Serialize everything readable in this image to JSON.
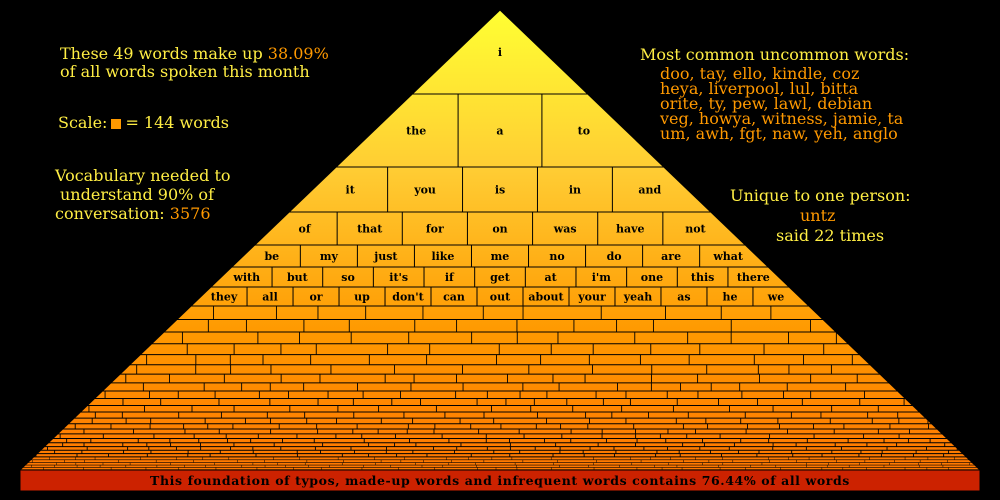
{
  "summary": {
    "line1_prefix": "These 49 words make up",
    "percent": "38.09%",
    "line2": "of all words spoken this month"
  },
  "scale": {
    "label": "Scale:",
    "equals_text": "= 144 words",
    "square_color": "#ff9900"
  },
  "vocabulary": {
    "line1": "Vocabulary needed to",
    "line2": "understand 90% of",
    "line3_prefix": "conversation:",
    "value": "3576"
  },
  "uncommon": {
    "heading": "Most common uncommon words:",
    "lines": [
      "doo, tay, ello, kindle, coz",
      "heya, liverpool, lul, bitta",
      "orite, ty, pew, lawl, debian",
      "veg, howya, witness, jamie, ta",
      "um, awh, fgt, naw, yeh, anglo"
    ]
  },
  "unique": {
    "heading": "Unique to one person:",
    "word": "untz",
    "count_text": "said 22 times"
  },
  "foundation": {
    "text": "This foundation of typos, made-up words and infrequent words contains 76.44% of all words",
    "color": "#cc2200"
  },
  "pyramid_rows": [
    [
      "i"
    ],
    [
      "the",
      "a",
      "to"
    ],
    [
      "it",
      "you",
      "is",
      "in",
      "and"
    ],
    [
      "of",
      "that",
      "for",
      "on",
      "was",
      "have",
      "not"
    ],
    [
      "be",
      "my",
      "just",
      "like",
      "me",
      "no",
      "do",
      "are",
      "what"
    ],
    [
      "with",
      "but",
      "so",
      "it's",
      "if",
      "get",
      "at",
      "i'm",
      "one",
      "this",
      "there"
    ],
    [
      "they",
      "all",
      "or",
      "up",
      "don't",
      "can",
      "out",
      "about",
      "your",
      "yeah",
      "as",
      "he",
      "we"
    ]
  ],
  "colors": {
    "top": "#ffff33",
    "middle": "#ffcc33",
    "bottom": "#ff8800",
    "text_yellow": "#ffee44",
    "text_orange": "#ff9900"
  }
}
